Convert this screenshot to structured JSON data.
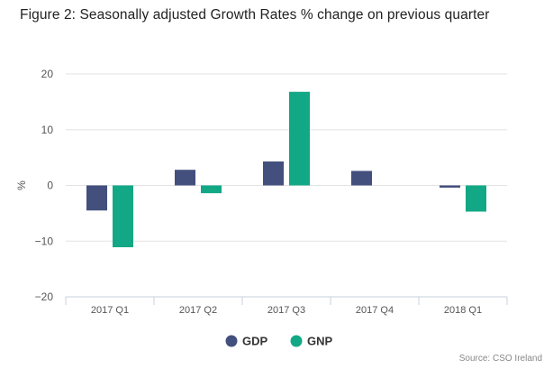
{
  "title": "Figure 2: Seasonally adjusted Growth Rates % change on previous quarter",
  "source": "Source: CSO Ireland",
  "chart_data": {
    "type": "bar",
    "title": "Figure 2: Seasonally adjusted Growth Rates % change on previous quarter",
    "xlabel": "",
    "ylabel": "%",
    "categories": [
      "2017 Q1",
      "2017 Q2",
      "2017 Q3",
      "2017 Q4",
      "2018 Q1"
    ],
    "series": [
      {
        "name": "GDP",
        "color": "#434f7d",
        "values": [
          -4.5,
          2.8,
          4.3,
          2.6,
          -0.4
        ]
      },
      {
        "name": "GNP",
        "color": "#12a885",
        "values": [
          -11.1,
          -1.4,
          16.8,
          0,
          -4.7
        ]
      }
    ],
    "ylim": [
      -20,
      20
    ],
    "yticks": [
      20,
      10,
      0,
      -10,
      -20
    ],
    "ytick_labels": [
      "20",
      "10",
      "0",
      "−10",
      "−20"
    ],
    "grid": true,
    "legend_position": "bottom-center"
  }
}
